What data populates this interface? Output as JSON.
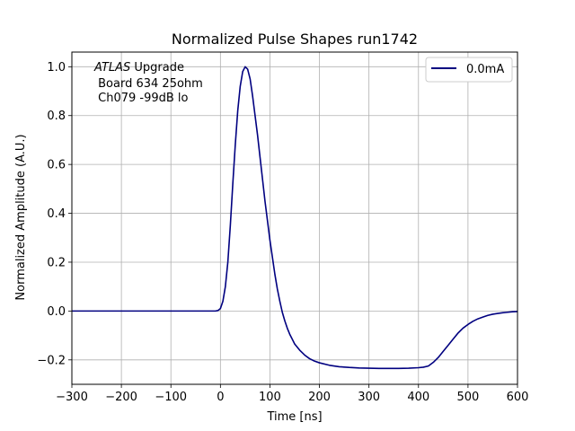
{
  "chart_data": {
    "type": "line",
    "title": "Normalized Pulse Shapes run1742",
    "xlabel": "Time [ns]",
    "ylabel": "Normalized Amplitude (A.U.)",
    "xlim": [
      -300,
      600
    ],
    "ylim": [
      -0.3,
      1.06
    ],
    "xticks": [
      -300,
      -200,
      -100,
      0,
      100,
      200,
      300,
      400,
      500,
      600
    ],
    "xtick_labels": [
      "−300",
      "−200",
      "−100",
      "0",
      "100",
      "200",
      "300",
      "400",
      "500",
      "600"
    ],
    "yticks": [
      -0.2,
      0.0,
      0.2,
      0.4,
      0.6,
      0.8,
      1.0
    ],
    "ytick_labels": [
      "−0.2",
      "0.0",
      "0.2",
      "0.4",
      "0.6",
      "0.8",
      "1.0"
    ],
    "grid": true,
    "legend_position": "top-right",
    "annotation": {
      "line1_italic": "ATLAS",
      "line1_rest": " Upgrade",
      "line2": " Board 634 25ohm",
      "line3": " Ch079 -99dB lo"
    },
    "series": [
      {
        "name": "0.0mA",
        "color": "#000080",
        "x": [
          -300,
          -250,
          -200,
          -150,
          -100,
          -50,
          -10,
          -5,
          0,
          5,
          10,
          15,
          20,
          25,
          30,
          35,
          40,
          45,
          50,
          55,
          60,
          65,
          70,
          75,
          80,
          85,
          90,
          95,
          100,
          105,
          110,
          115,
          120,
          125,
          130,
          135,
          140,
          145,
          150,
          160,
          170,
          180,
          190,
          200,
          220,
          240,
          260,
          280,
          300,
          320,
          340,
          360,
          380,
          400,
          410,
          420,
          430,
          440,
          450,
          460,
          470,
          480,
          490,
          500,
          510,
          520,
          530,
          540,
          550,
          560,
          570,
          580,
          590,
          600
        ],
        "y": [
          0.0,
          0.0,
          0.0,
          0.0,
          0.0,
          0.0,
          0.0,
          0.002,
          0.01,
          0.04,
          0.1,
          0.2,
          0.35,
          0.52,
          0.68,
          0.82,
          0.92,
          0.98,
          1.0,
          0.99,
          0.95,
          0.88,
          0.8,
          0.72,
          0.63,
          0.54,
          0.45,
          0.37,
          0.29,
          0.22,
          0.15,
          0.09,
          0.04,
          -0.005,
          -0.04,
          -0.07,
          -0.095,
          -0.115,
          -0.135,
          -0.16,
          -0.18,
          -0.195,
          -0.205,
          -0.212,
          -0.222,
          -0.228,
          -0.231,
          -0.233,
          -0.234,
          -0.235,
          -0.235,
          -0.235,
          -0.234,
          -0.232,
          -0.23,
          -0.225,
          -0.21,
          -0.19,
          -0.165,
          -0.14,
          -0.115,
          -0.09,
          -0.07,
          -0.055,
          -0.042,
          -0.032,
          -0.025,
          -0.018,
          -0.013,
          -0.01,
          -0.007,
          -0.005,
          -0.003,
          -0.002
        ]
      }
    ]
  }
}
